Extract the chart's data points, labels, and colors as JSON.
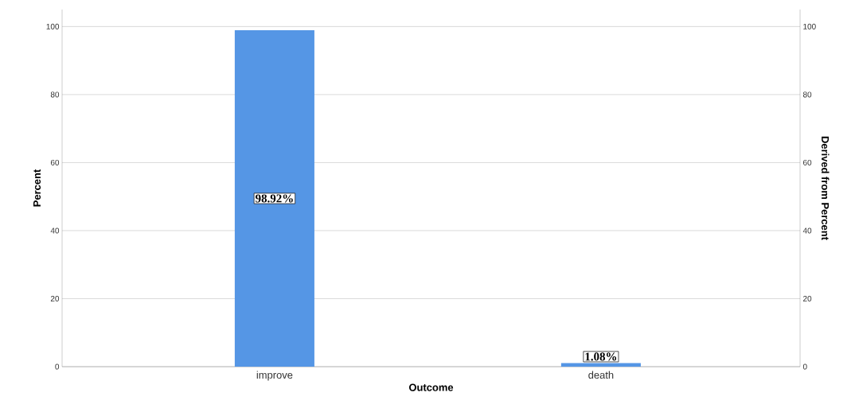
{
  "chart_data": {
    "type": "bar",
    "xlabel": "Outcome",
    "ylabel": "Percent",
    "y2label": "Derived from Percent",
    "categories": [
      "improve",
      "death"
    ],
    "values": [
      98.92,
      1.08
    ],
    "color": "#5596e5",
    "value_labels": [
      "98.92%",
      "1.08%"
    ],
    "ylim": [
      0,
      105
    ],
    "yticks": [
      0,
      20,
      40,
      60,
      80,
      100
    ],
    "y2lim": [
      0,
      105
    ],
    "y2ticks": [
      0,
      20,
      40,
      60,
      80,
      100
    ],
    "grid": "y"
  }
}
